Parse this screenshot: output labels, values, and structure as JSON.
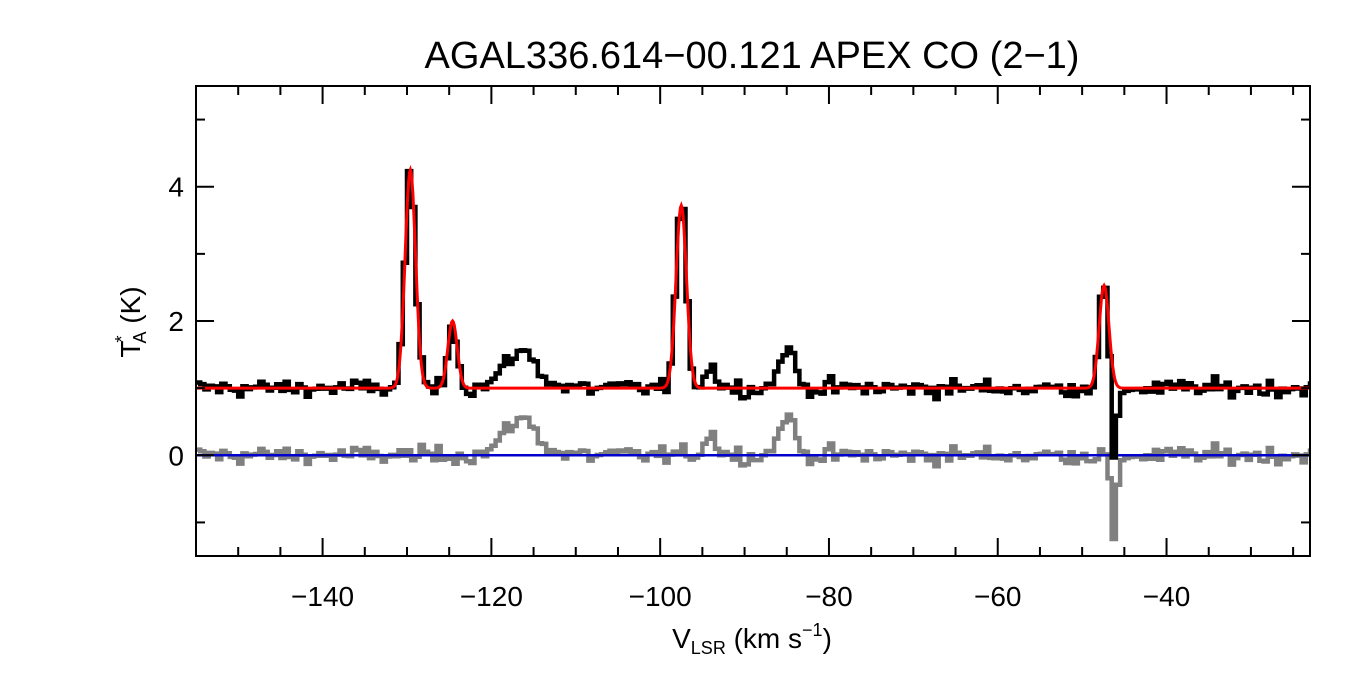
{
  "chart_data": {
    "type": "line",
    "title": "AGAL336.614−00.121   APEX CO (2−1)",
    "xlabel": {
      "main": "V",
      "sub": "LSR",
      "rest": " (km s",
      "sup": "−1",
      "end": ")"
    },
    "ylabel": {
      "main": "T",
      "sup": "*",
      "sub": "A",
      "rest": " (K)"
    },
    "xlim": [
      -155,
      -23
    ],
    "ylim": [
      -1.5,
      5.5
    ],
    "x_ticks": [
      -140,
      -120,
      -100,
      -80,
      -60,
      -40
    ],
    "x_tick_labels": [
      "−140",
      "−120",
      "−100",
      "−80",
      "−60",
      "−40"
    ],
    "y_ticks": [
      0,
      2,
      4
    ],
    "y_tick_labels": [
      "0",
      "2",
      "4"
    ],
    "baseline_offset": 1.0,
    "gaussian_components": [
      {
        "center": -129.6,
        "amplitude": 3.25,
        "sigma": 0.62,
        "fitted": true
      },
      {
        "center": -124.6,
        "amplitude": 1.0,
        "sigma": 0.55,
        "fitted": true
      },
      {
        "center": -116.5,
        "amplitude": 0.55,
        "sigma": 1.9,
        "fitted": false
      },
      {
        "center": -97.5,
        "amplitude": 2.72,
        "sigma": 0.62,
        "fitted": true
      },
      {
        "center": -94.0,
        "amplitude": 0.3,
        "sigma": 0.8,
        "fitted": false
      },
      {
        "center": -85.0,
        "amplitude": 0.6,
        "sigma": 0.9,
        "fitted": false
      },
      {
        "center": -47.4,
        "amplitude": 1.53,
        "sigma": 0.58,
        "fitted": true
      }
    ],
    "absorption": {
      "center": -46.2,
      "depth": 1.3,
      "sigma": 0.35
    },
    "series": [
      {
        "name": "",
        "color": "#000000",
        "role": "observed spectrum"
      },
      {
        "name": "",
        "color": "#ff0000",
        "role": "gaussian fit"
      },
      {
        "name": "",
        "color": "#808080",
        "role": "residual"
      },
      {
        "name": "",
        "color": "#0000cc",
        "role": "zero line"
      }
    ],
    "noise_rms": 0.09,
    "channel_width": 0.5
  }
}
